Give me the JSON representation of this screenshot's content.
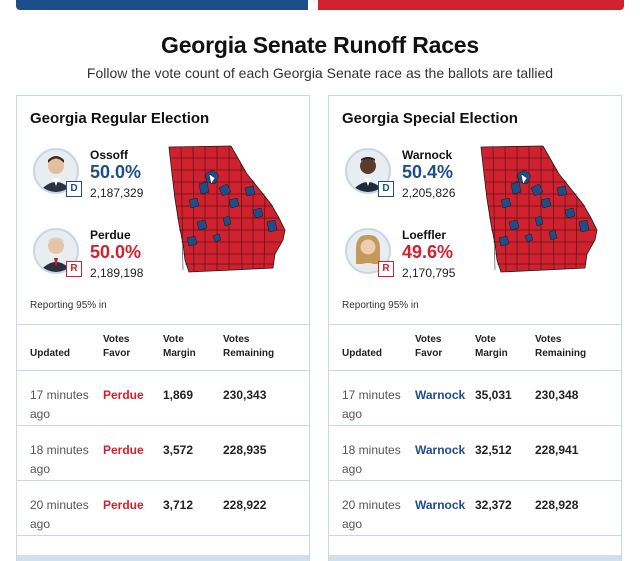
{
  "header": {
    "title": "Georgia Senate Runoff Races",
    "subtitle": "Follow the vote count of each Georgia Senate race as the ballots are tallied",
    "colors": {
      "blue": "#1d4e89",
      "red": "#d0212e"
    }
  },
  "races": [
    {
      "title": "Georgia Regular Election",
      "candidates": [
        {
          "name": "Ossoff",
          "party": "D",
          "percent": "50.0%",
          "votes": "2,187,329"
        },
        {
          "name": "Perdue",
          "party": "R",
          "percent": "50.0%",
          "votes": "2,189,198"
        }
      ],
      "reporting": "Reporting 95% in",
      "table": {
        "headers": {
          "updated": "Updated",
          "favor": "Votes Favor",
          "margin": "Vote Margin",
          "remaining": "Votes Remaining"
        },
        "rows": [
          {
            "updated": "17 minutes ago",
            "favor": "Perdue",
            "margin": "1,869",
            "remaining": "230,343"
          },
          {
            "updated": "18 minutes ago",
            "favor": "Perdue",
            "margin": "3,572",
            "remaining": "228,935"
          },
          {
            "updated": "20 minutes ago",
            "favor": "Perdue",
            "margin": "3,712",
            "remaining": "228,922"
          }
        ]
      }
    },
    {
      "title": "Georgia Special Election",
      "candidates": [
        {
          "name": "Warnock",
          "party": "D",
          "percent": "50.4%",
          "votes": "2,205,826"
        },
        {
          "name": "Loeffler",
          "party": "R",
          "percent": "49.6%",
          "votes": "2,170,795"
        }
      ],
      "reporting": "Reporting 95% in",
      "table": {
        "headers": {
          "updated": "Updated",
          "favor": "Votes Favor",
          "margin": "Vote Margin",
          "remaining": "Votes Remaining"
        },
        "rows": [
          {
            "updated": "17 minutes ago",
            "favor": "Warnock",
            "margin": "35,031",
            "remaining": "230,348"
          },
          {
            "updated": "18 minutes ago",
            "favor": "Warnock",
            "margin": "32,512",
            "remaining": "228,941"
          },
          {
            "updated": "20 minutes ago",
            "favor": "Warnock",
            "margin": "32,372",
            "remaining": "228,928"
          }
        ]
      }
    }
  ]
}
